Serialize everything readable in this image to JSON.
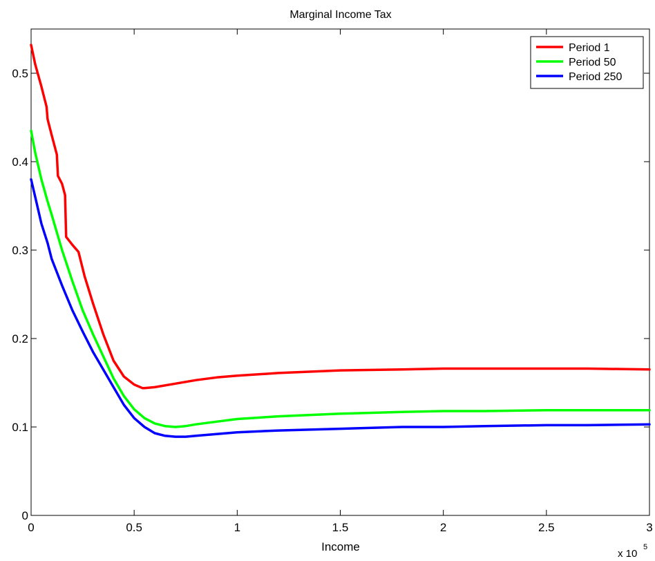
{
  "chart_data": {
    "type": "line",
    "title": "Marginal Income Tax",
    "xlabel": "Income",
    "ylabel": "",
    "x_scale_label": {
      "base": "x 10",
      "exponent": "5"
    },
    "xlim": [
      0,
      300000
    ],
    "ylim": [
      0,
      0.55
    ],
    "x_ticks": [
      0,
      50000,
      100000,
      150000,
      200000,
      250000,
      300000
    ],
    "x_tick_labels": [
      "0",
      "0.5",
      "1",
      "1.5",
      "2",
      "2.5",
      "3"
    ],
    "y_ticks": [
      0,
      0.1,
      0.2,
      0.3,
      0.4,
      0.5
    ],
    "y_tick_labels": [
      "0",
      "0.1",
      "0.2",
      "0.3",
      "0.4",
      "0.5"
    ],
    "grid": false,
    "legend_position": "top-right",
    "series": [
      {
        "name": "Period 1",
        "color": "#ff0000",
        "x": [
          0,
          2000,
          5000,
          7500,
          8000,
          10000,
          12500,
          13000,
          15000,
          16500,
          17000,
          20000,
          23000,
          26000,
          30000,
          35000,
          40000,
          45000,
          50000,
          54000,
          55000,
          60000,
          70000,
          80000,
          90000,
          100000,
          120000,
          150000,
          180000,
          200000,
          220000,
          250000,
          270000,
          300000
        ],
        "y": [
          0.532,
          0.51,
          0.485,
          0.462,
          0.448,
          0.43,
          0.408,
          0.384,
          0.375,
          0.362,
          0.315,
          0.306,
          0.298,
          0.27,
          0.24,
          0.205,
          0.175,
          0.157,
          0.148,
          0.144,
          0.144,
          0.145,
          0.149,
          0.153,
          0.156,
          0.158,
          0.161,
          0.164,
          0.165,
          0.166,
          0.166,
          0.166,
          0.166,
          0.165
        ]
      },
      {
        "name": "Period 50",
        "color": "#00ff00",
        "x": [
          0,
          2000,
          5000,
          8000,
          10000,
          15000,
          20000,
          25000,
          30000,
          35000,
          40000,
          45000,
          50000,
          55000,
          60000,
          65000,
          70000,
          75000,
          80000,
          90000,
          100000,
          120000,
          150000,
          180000,
          200000,
          220000,
          250000,
          270000,
          300000
        ],
        "y": [
          0.435,
          0.41,
          0.38,
          0.355,
          0.34,
          0.3,
          0.265,
          0.232,
          0.205,
          0.18,
          0.155,
          0.135,
          0.12,
          0.11,
          0.104,
          0.101,
          0.1,
          0.101,
          0.103,
          0.106,
          0.109,
          0.112,
          0.115,
          0.117,
          0.118,
          0.118,
          0.119,
          0.119,
          0.119
        ]
      },
      {
        "name": "Period 250",
        "color": "#0000ff",
        "x": [
          0,
          2000,
          5000,
          8000,
          10000,
          15000,
          20000,
          25000,
          30000,
          35000,
          40000,
          45000,
          50000,
          55000,
          60000,
          65000,
          70000,
          75000,
          80000,
          90000,
          100000,
          120000,
          150000,
          180000,
          200000,
          220000,
          250000,
          270000,
          300000
        ],
        "y": [
          0.38,
          0.36,
          0.33,
          0.308,
          0.29,
          0.26,
          0.232,
          0.208,
          0.185,
          0.165,
          0.145,
          0.125,
          0.11,
          0.1,
          0.093,
          0.09,
          0.089,
          0.089,
          0.09,
          0.092,
          0.094,
          0.096,
          0.098,
          0.1,
          0.1,
          0.101,
          0.102,
          0.102,
          0.103
        ]
      }
    ]
  }
}
